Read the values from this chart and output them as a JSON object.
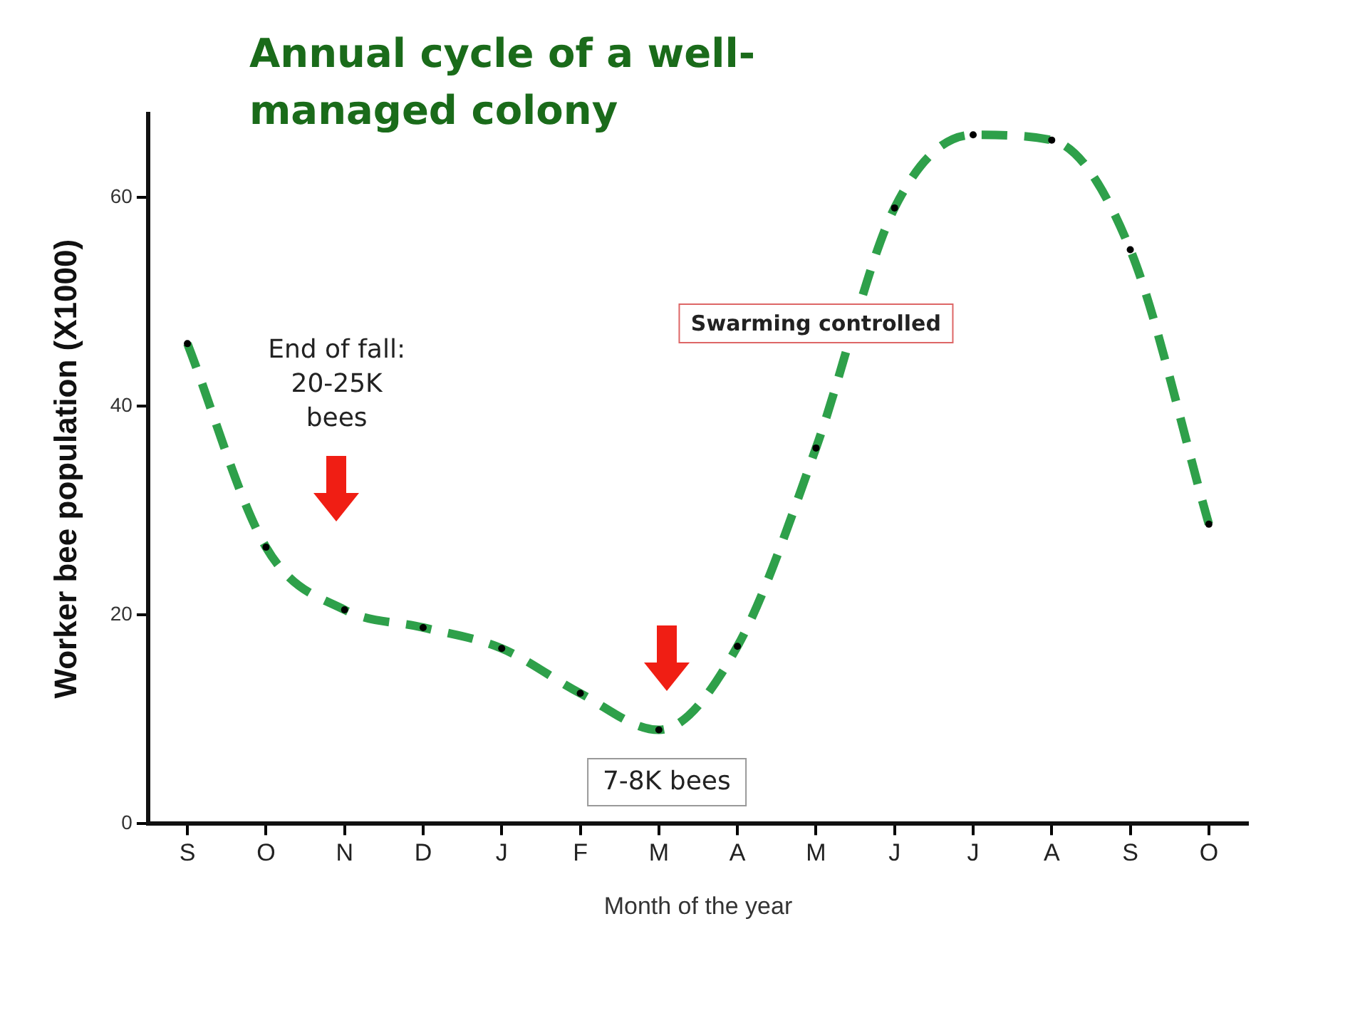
{
  "chart_data": {
    "type": "line",
    "title": "Annual cycle of a well-managed colony",
    "xlabel": "Month of the year",
    "ylabel": "Worker bee population (X1000)",
    "categories": [
      "S",
      "O",
      "N",
      "D",
      "J",
      "F",
      "M",
      "A",
      "M",
      "J",
      "J",
      "A",
      "S",
      "O"
    ],
    "series": [
      {
        "color": "#2ea04a",
        "values": [
          46,
          26.5,
          20.5,
          18.8,
          16.8,
          12.5,
          9,
          17,
          36,
          59,
          66,
          65.5,
          55,
          28.7
        ]
      }
    ],
    "ylim": [
      0,
      68
    ],
    "yticks": [
      0,
      20,
      40,
      60
    ],
    "grid": false,
    "legend": false,
    "marker": "circle",
    "line_style": "dashed",
    "annotations": [
      "End of fall: 20-25K bees",
      "7-8K bees",
      "Swarming controlled"
    ]
  }
}
